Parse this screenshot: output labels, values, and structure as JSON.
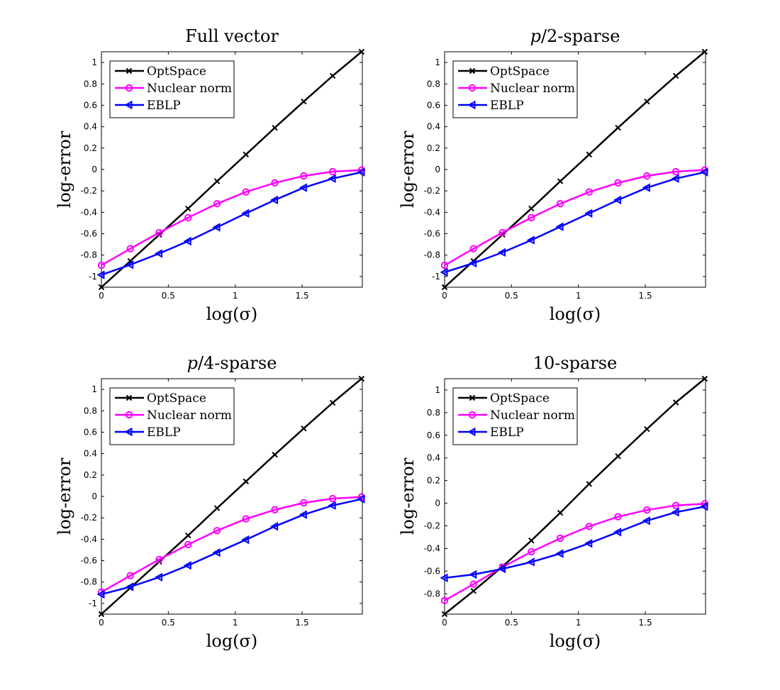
{
  "chart_data": [
    {
      "type": "line",
      "title": "Full vector",
      "xlabel": "log(σ)",
      "ylabel": "log-error",
      "xlim": [
        0,
        1.95
      ],
      "ylim": [
        -1.1,
        1.1
      ],
      "xticks": [
        "0",
        "0.5",
        "1",
        "1.5"
      ],
      "yticks": [
        "-1",
        "-0.8",
        "-0.6",
        "-0.4",
        "-0.2",
        "0",
        "0.2",
        "0.4",
        "0.6",
        "0.8",
        "1"
      ],
      "x": [
        0,
        0.216,
        0.432,
        0.648,
        0.864,
        1.08,
        1.296,
        1.512,
        1.728,
        1.944
      ],
      "legend_position": "top-left",
      "series": [
        {
          "name": "OptSpace",
          "color": "#000000",
          "marker": "x-icon",
          "values": [
            -1.1,
            -0.855,
            -0.61,
            -0.365,
            -0.11,
            0.14,
            0.39,
            0.635,
            0.875,
            1.1
          ]
        },
        {
          "name": "Nuclear norm",
          "color": "#ff00ff",
          "marker": "circle-icon",
          "values": [
            -0.895,
            -0.74,
            -0.59,
            -0.45,
            -0.32,
            -0.21,
            -0.125,
            -0.06,
            -0.02,
            -0.005
          ]
        },
        {
          "name": "EBLP",
          "color": "#0000ff",
          "marker": "left-triangle-icon",
          "values": [
            -0.985,
            -0.89,
            -0.785,
            -0.67,
            -0.54,
            -0.41,
            -0.285,
            -0.17,
            -0.085,
            -0.025
          ]
        }
      ]
    },
    {
      "type": "line",
      "title": "p/2-sparse",
      "title_italic_part": "p",
      "title_rest": "/2-sparse",
      "xlabel": "log(σ)",
      "ylabel": "log-error",
      "xlim": [
        0,
        1.95
      ],
      "ylim": [
        -1.1,
        1.1
      ],
      "xticks": [
        "0",
        "0.5",
        "1",
        "1.5"
      ],
      "yticks": [
        "-1",
        "-0.8",
        "-0.6",
        "-0.4",
        "-0.2",
        "0",
        "0.2",
        "0.4",
        "0.6",
        "0.8",
        "1"
      ],
      "x": [
        0,
        0.216,
        0.432,
        0.648,
        0.864,
        1.08,
        1.296,
        1.512,
        1.728,
        1.944
      ],
      "legend_position": "top-left",
      "series": [
        {
          "name": "OptSpace",
          "color": "#000000",
          "marker": "x-icon",
          "values": [
            -1.1,
            -0.855,
            -0.61,
            -0.365,
            -0.11,
            0.14,
            0.39,
            0.635,
            0.875,
            1.1
          ]
        },
        {
          "name": "Nuclear norm",
          "color": "#ff00ff",
          "marker": "circle-icon",
          "values": [
            -0.895,
            -0.74,
            -0.59,
            -0.45,
            -0.32,
            -0.21,
            -0.125,
            -0.06,
            -0.02,
            -0.005
          ]
        },
        {
          "name": "EBLP",
          "color": "#0000ff",
          "marker": "left-triangle-icon",
          "values": [
            -0.96,
            -0.875,
            -0.775,
            -0.66,
            -0.535,
            -0.41,
            -0.285,
            -0.17,
            -0.085,
            -0.025
          ]
        }
      ]
    },
    {
      "type": "line",
      "title": "p/4-sparse",
      "title_italic_part": "p",
      "title_rest": "/4-sparse",
      "xlabel": "log(σ)",
      "ylabel": "log-error",
      "xlim": [
        0,
        1.95
      ],
      "ylim": [
        -1.1,
        1.1
      ],
      "xticks": [
        "0",
        "0.5",
        "1",
        "1.5"
      ],
      "yticks": [
        "-1",
        "-0.8",
        "-0.6",
        "-0.4",
        "-0.2",
        "0",
        "0.2",
        "0.4",
        "0.6",
        "0.8",
        "1"
      ],
      "x": [
        0,
        0.216,
        0.432,
        0.648,
        0.864,
        1.08,
        1.296,
        1.512,
        1.728,
        1.944
      ],
      "legend_position": "top-left",
      "series": [
        {
          "name": "OptSpace",
          "color": "#000000",
          "marker": "x-icon",
          "values": [
            -1.1,
            -0.855,
            -0.61,
            -0.365,
            -0.11,
            0.14,
            0.39,
            0.635,
            0.875,
            1.1
          ]
        },
        {
          "name": "Nuclear norm",
          "color": "#ff00ff",
          "marker": "circle-icon",
          "values": [
            -0.895,
            -0.74,
            -0.59,
            -0.45,
            -0.32,
            -0.21,
            -0.125,
            -0.06,
            -0.02,
            -0.005
          ]
        },
        {
          "name": "EBLP",
          "color": "#0000ff",
          "marker": "left-triangle-icon",
          "values": [
            -0.915,
            -0.845,
            -0.755,
            -0.645,
            -0.525,
            -0.405,
            -0.28,
            -0.17,
            -0.085,
            -0.025
          ]
        }
      ]
    },
    {
      "type": "line",
      "title": "10-sparse",
      "xlabel": "log(σ)",
      "ylabel": "log-error",
      "xlim": [
        0,
        1.95
      ],
      "ylim": [
        -0.98,
        1.1
      ],
      "xticks": [
        "0",
        "0.5",
        "1",
        "1.5"
      ],
      "yticks": [
        "-0.8",
        "-0.6",
        "-0.4",
        "-0.2",
        "0",
        "0.2",
        "0.4",
        "0.6",
        "0.8",
        "1"
      ],
      "x": [
        0,
        0.216,
        0.432,
        0.648,
        0.864,
        1.08,
        1.296,
        1.512,
        1.728,
        1.944
      ],
      "legend_position": "top-left",
      "series": [
        {
          "name": "OptSpace",
          "color": "#000000",
          "marker": "x-icon",
          "values": [
            -0.98,
            -0.775,
            -0.56,
            -0.33,
            -0.085,
            0.17,
            0.415,
            0.655,
            0.89,
            1.1
          ]
        },
        {
          "name": "Nuclear norm",
          "color": "#ff00ff",
          "marker": "circle-icon",
          "values": [
            -0.86,
            -0.715,
            -0.565,
            -0.43,
            -0.31,
            -0.205,
            -0.12,
            -0.06,
            -0.02,
            -0.005
          ]
        },
        {
          "name": "EBLP",
          "color": "#0000ff",
          "marker": "left-triangle-icon",
          "values": [
            -0.66,
            -0.63,
            -0.58,
            -0.52,
            -0.445,
            -0.355,
            -0.255,
            -0.155,
            -0.08,
            -0.03
          ]
        }
      ]
    }
  ]
}
